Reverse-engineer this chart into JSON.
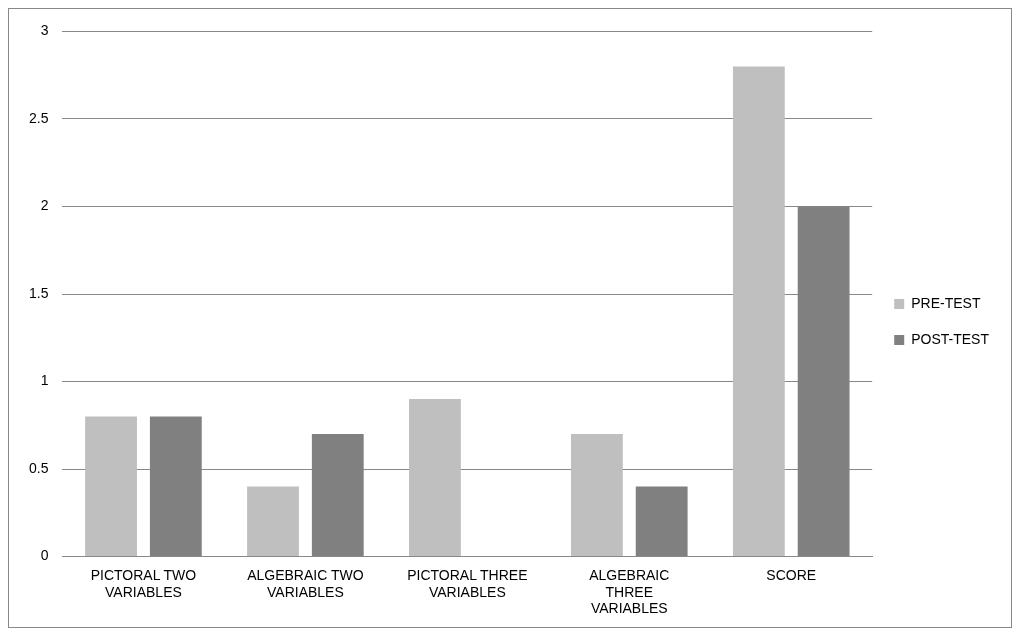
{
  "chart_data": {
    "type": "bar",
    "categories": [
      "PICTORAL TWO VARIABLES",
      "ALGEBRAIC TWO VARIABLES",
      "PICTORAL THREE VARIABLES",
      "ALGEBRAIC THREE VARIABLES",
      "SCORE"
    ],
    "series": [
      {
        "name": "PRE-TEST",
        "color": "#bfbfbf",
        "values": [
          0.8,
          0.4,
          0.9,
          0.7,
          2.8
        ]
      },
      {
        "name": "POST-TEST",
        "color": "#808080",
        "values": [
          0.8,
          0.7,
          0,
          0.4,
          2.0
        ]
      }
    ],
    "ylim": [
      0,
      3
    ],
    "yticks": [
      0,
      0.5,
      1,
      1.5,
      2,
      2.5,
      3
    ],
    "grid": "y",
    "legend": "right"
  }
}
